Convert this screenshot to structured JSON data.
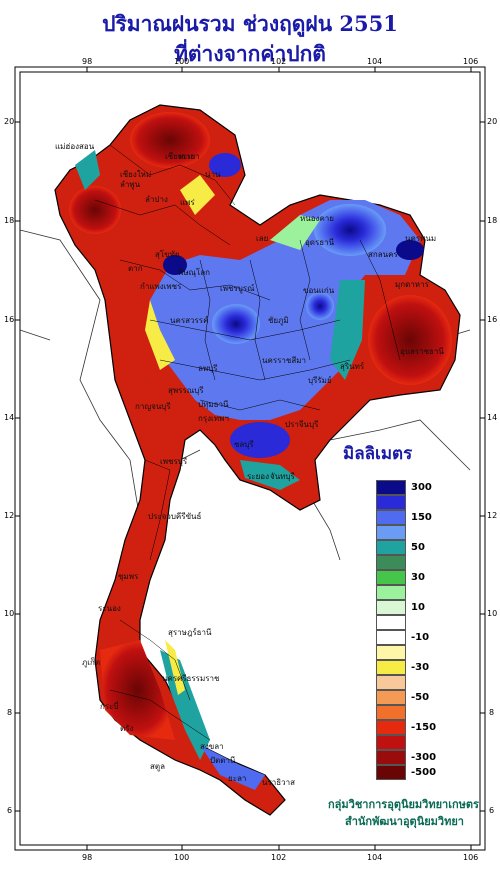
{
  "title_line1": "ปริมาณฝนรวม ช่วงฤดูฝน 2551",
  "title_line2": "ที่ต่างจากค่าปกติ",
  "axes": {
    "lon_ticks": [
      "98",
      "100",
      "102",
      "104",
      "106"
    ],
    "lat_ticks": [
      "20",
      "18",
      "16",
      "14",
      "12",
      "10",
      "8",
      "6"
    ]
  },
  "legend": {
    "title": "มิลลิเมตร",
    "scale": [
      {
        "color": "#0a0a8a",
        "label": "300"
      },
      {
        "color": "#2a2ad8",
        "label": ""
      },
      {
        "color": "#4f6bf0",
        "label": "150"
      },
      {
        "color": "#6a9cf5",
        "label": ""
      },
      {
        "color": "#1fa3a0",
        "label": "50"
      },
      {
        "color": "#3c8c5a",
        "label": ""
      },
      {
        "color": "#45c64a",
        "label": "30"
      },
      {
        "color": "#9cf29c",
        "label": ""
      },
      {
        "color": "#d9f7d4",
        "label": "10"
      },
      {
        "color": "#ffffff",
        "label": ""
      },
      {
        "color": "#ffffff",
        "label": "-10"
      },
      {
        "color": "#fff6a8",
        "label": ""
      },
      {
        "color": "#f7ec45",
        "label": "-30"
      },
      {
        "color": "#f9c89a",
        "label": ""
      },
      {
        "color": "#f59a55",
        "label": "-50"
      },
      {
        "color": "#f0702c",
        "label": ""
      },
      {
        "color": "#e62a10",
        "label": "-150"
      },
      {
        "color": "#c01010",
        "label": ""
      },
      {
        "color": "#9a0b0b",
        "label": "-300"
      },
      {
        "color": "#6a0505",
        "label": "-500"
      }
    ]
  },
  "places": [
    "เชียงราย",
    "เชียงใหม่",
    "ลำพูน",
    "ลำปาง",
    "แพร่",
    "น่าน",
    "พะเยา",
    "แม่ฮ่องสอน",
    "ตาก",
    "สุโขทัย",
    "พิษณุโลก",
    "กำแพงเพชร",
    "เพชรบูรณ์",
    "เลย",
    "หนองคาย",
    "อุดรธานี",
    "นครพนม",
    "สกลนคร",
    "มุกดาหาร",
    "ขอนแก่น",
    "ชัยภูมิ",
    "นครสวรรค์",
    "ลพบุรี",
    "กาญจนบุรี",
    "สุพรรณบุรี",
    "ปทุมธานี",
    "กรุงเทพฯ",
    "ชลบุรี",
    "ระยอง",
    "จันทบุรี",
    "นครราชสีมา",
    "บุรีรัมย์",
    "สุรินทร์",
    "อุบลราชธานี",
    "ปราจีนบุรี",
    "เพชรบุรี",
    "ประจวบคีรีขันธ์",
    "ชุมพร",
    "ระนอง",
    "สุราษฎร์ธานี",
    "นครศรีธรรมราช",
    "ภูเก็ต",
    "กระบี่",
    "ตรัง",
    "สงขลา",
    "สตูล",
    "ปัตตานี",
    "ยะลา",
    "นราธิวาส"
  ],
  "credits": {
    "line1": "กลุ่มวิชาการอุตุนิยมวิทยาเกษตร",
    "line2": "สำนักพัฒนาอุตุนิยมวิทยา"
  }
}
